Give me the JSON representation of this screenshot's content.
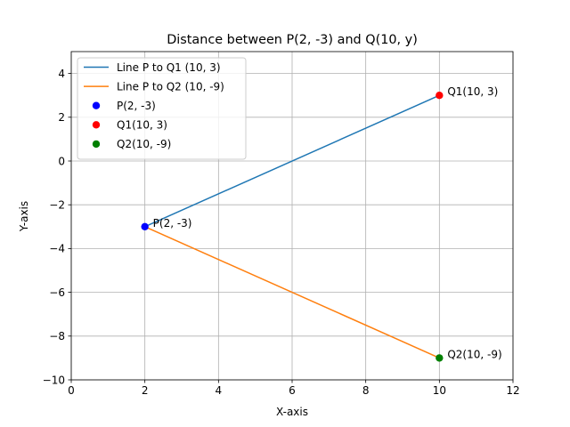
{
  "chart_data": {
    "type": "line",
    "title": "Distance between P(2, -3) and Q(10, y)",
    "xlabel": "X-axis",
    "ylabel": "Y-axis",
    "xlim": [
      0,
      12
    ],
    "ylim": [
      -10,
      5
    ],
    "xticks": [
      0,
      2,
      4,
      6,
      8,
      10,
      12
    ],
    "yticks": [
      -10,
      -8,
      -6,
      -4,
      -2,
      0,
      2,
      4
    ],
    "grid": true,
    "legend_position": "top-left",
    "series": [
      {
        "name": "Line P to Q1 (10, 3)",
        "kind": "line",
        "color": "#1f77b4",
        "x": [
          2,
          10
        ],
        "y": [
          -3,
          3
        ]
      },
      {
        "name": "Line P to Q2 (10, -9)",
        "kind": "line",
        "color": "#ff7f0e",
        "x": [
          2,
          10
        ],
        "y": [
          -3,
          -9
        ]
      },
      {
        "name": "P(2, -3)",
        "kind": "point",
        "color": "#0000ff",
        "x": [
          2
        ],
        "y": [
          -3
        ]
      },
      {
        "name": "Q1(10, 3)",
        "kind": "point",
        "color": "#ff0000",
        "x": [
          10
        ],
        "y": [
          3
        ]
      },
      {
        "name": "Q2(10, -9)",
        "kind": "point",
        "color": "#008000",
        "x": [
          10
        ],
        "y": [
          -9
        ]
      }
    ],
    "annotations": [
      {
        "text": "P(2, -3)",
        "x": 2,
        "y": -3
      },
      {
        "text": "Q1(10, 3)",
        "x": 10,
        "y": 3
      },
      {
        "text": "Q2(10, -9)",
        "x": 10,
        "y": -9
      }
    ]
  }
}
